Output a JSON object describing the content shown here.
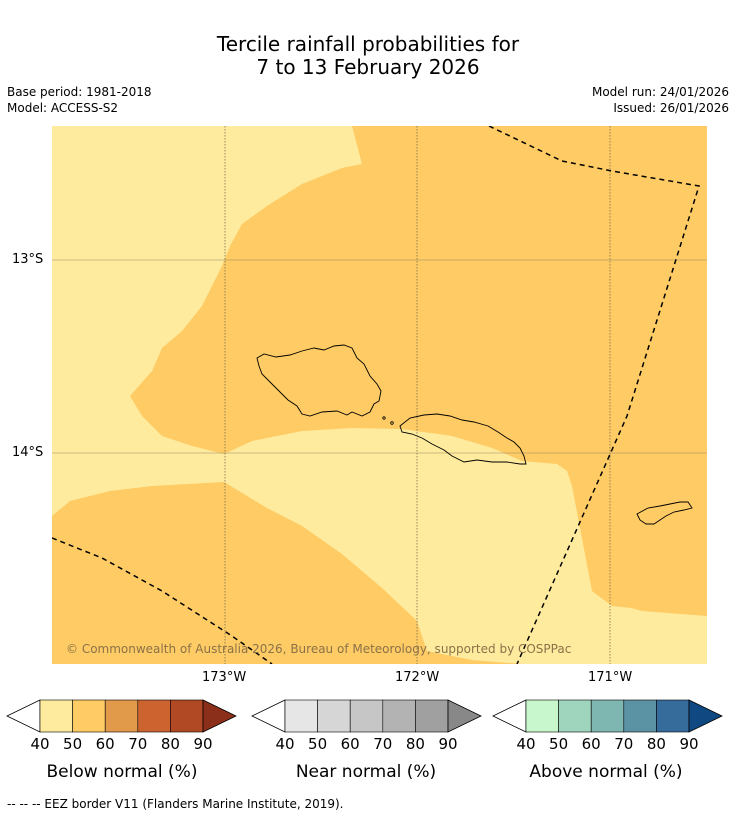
{
  "title": {
    "line1": "Tercile rainfall probabilities for",
    "line2": "7 to 13 February 2026"
  },
  "meta": {
    "base_period": "Base period: 1981-2018",
    "model": "Model: ACCESS-S2",
    "model_run": "Model run: 24/01/2026",
    "issued": "Issued: 26/01/2026"
  },
  "map": {
    "lat_labels": [
      "13°S",
      "14°S"
    ],
    "lon_labels": [
      "173°W",
      "172°W",
      "171°W"
    ],
    "copyright": "© Commonwealth of Australia 2026, Bureau of Meteorology, supported by COSPPac",
    "colors": {
      "below_40_50": "#feeb9e",
      "below_50_60": "#fecb65",
      "border": "#000000"
    }
  },
  "colorbars": {
    "below": {
      "label": "Below normal (%)",
      "ticks": [
        "40",
        "50",
        "60",
        "70",
        "80",
        "90"
      ],
      "colors": [
        "#feeb9e",
        "#fecb65",
        "#e19a4a",
        "#cd642f",
        "#b14a24",
        "#8c2f1a"
      ]
    },
    "near": {
      "label": "Near normal (%)",
      "ticks": [
        "40",
        "50",
        "60",
        "70",
        "80",
        "90"
      ],
      "colors": [
        "#e6e6e6",
        "#d6d6d6",
        "#c6c6c6",
        "#b3b3b3",
        "#a0a0a0",
        "#888888"
      ]
    },
    "above": {
      "label": "Above normal (%)",
      "ticks": [
        "40",
        "50",
        "60",
        "70",
        "80",
        "90"
      ],
      "colors": [
        "#c8f7cd",
        "#a0d5bd",
        "#7eb6b2",
        "#5c93a4",
        "#356c9c",
        "#104882"
      ]
    }
  },
  "footer": {
    "legend_text": "--  --  -- EEZ border V11 (Flanders Marine Institute, 2019)."
  }
}
